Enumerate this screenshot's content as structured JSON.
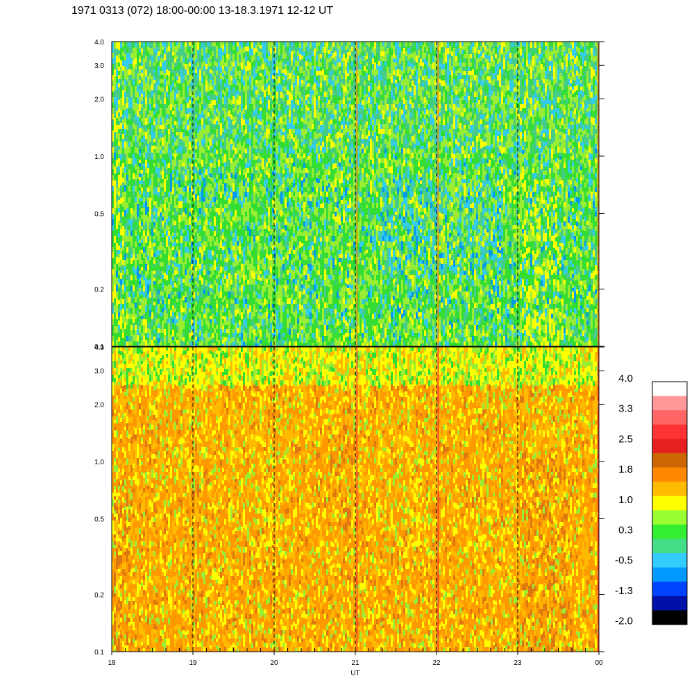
{
  "chart_data": {
    "type": "heatmap",
    "title": "1971 0313 (072) 18:00-00:00 13-18.3.1971  12-12 UT",
    "xlabel": "UT",
    "x_tick_labels": [
      "18",
      "19",
      "20",
      "21",
      "22",
      "23",
      "00"
    ],
    "x_tick_hours": [
      18,
      19,
      20,
      21,
      22,
      23,
      24
    ],
    "xlim": [
      18,
      24
    ],
    "y_scale": "log",
    "y_tick_labels": [
      "4.0",
      "3.0",
      "2.0",
      "1.0",
      "0.5",
      "0.2",
      "0.1"
    ],
    "y_tick_values": [
      4.0,
      3.0,
      2.0,
      1.0,
      0.5,
      0.2,
      0.1
    ],
    "ylim": [
      0.1,
      4.0
    ],
    "vertical_dashed_lines_at": [
      19,
      20,
      21,
      22,
      23
    ],
    "panels": [
      {
        "name": "upper",
        "dominant_levels": [
          "0.3",
          "-0.5"
        ],
        "texture_note": "mostly green / light green with blue-cyan streaks; yellow patches near 18 and 23.2"
      },
      {
        "name": "lower",
        "dominant_levels": [
          "1.8",
          "1.0"
        ],
        "texture_note": "mostly orange / yellow with green streaks; darker orange near 18.1, 20.8 and 23.3"
      }
    ],
    "colorbar": {
      "tick_labels": [
        "4.0",
        "3.3",
        "2.5",
        "1.8",
        "1.0",
        "0.3",
        "-0.5",
        "-1.3",
        "-2.0"
      ],
      "colors": [
        "#ffffff",
        "#ff9999",
        "#ff6666",
        "#ff3333",
        "#e62020",
        "#cc6600",
        "#ff8800",
        "#ffbb00",
        "#ffff00",
        "#99ff33",
        "#33ee33",
        "#44dd88",
        "#33ccff",
        "#0099ff",
        "#0044ff",
        "#0011aa",
        "#000000"
      ]
    }
  }
}
